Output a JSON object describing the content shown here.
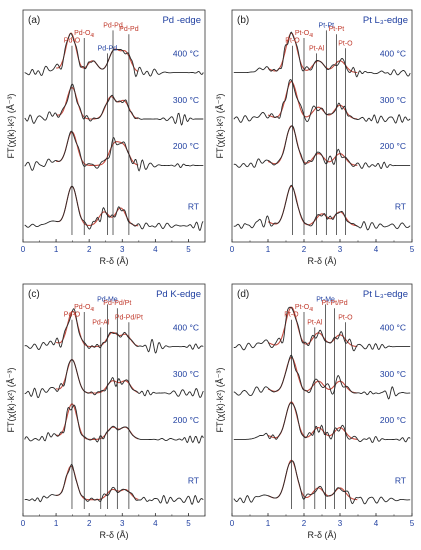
{
  "chart_data": [
    {
      "type": "line",
      "panel_label": "(a)",
      "title": "Pd -edge",
      "xlabel": "R-δ (Å)",
      "ylabel": "FT(χ(k)·k²) (Å⁻³)",
      "xlim": [
        0,
        5.5
      ],
      "x_ticks": [
        "0",
        "1",
        "2",
        "3",
        "4",
        "5"
      ],
      "grid": false,
      "series_colors": {
        "experimental": "#2a2a2a",
        "fit": "#c0392b"
      },
      "traces": [
        {
          "temperature": "RT",
          "peaks": [
            [
              1.48,
              1.0
            ],
            [
              2.45,
              0.35
            ],
            [
              2.95,
              0.45
            ]
          ]
        },
        {
          "temperature": "200 °C",
          "peaks": [
            [
              1.48,
              0.85
            ],
            [
              2.75,
              0.5
            ],
            [
              3.05,
              0.45
            ]
          ]
        },
        {
          "temperature": "300 °C",
          "peaks": [
            [
              1.48,
              0.8
            ],
            [
              2.65,
              0.55
            ],
            [
              3.05,
              0.45
            ]
          ]
        },
        {
          "temperature": "400 °C",
          "peaks": [
            [
              1.45,
              1.0
            ],
            [
              2.1,
              0.3
            ],
            [
              2.75,
              0.55
            ],
            [
              3.1,
              0.5
            ]
          ]
        }
      ],
      "markers": [
        {
          "label": "Pd-O",
          "x": 1.48,
          "color": "#c0392b"
        },
        {
          "label": "Pd-O",
          "sub": "4l",
          "x": 1.85,
          "color": "#c0392b"
        },
        {
          "label": "Pd-Pd",
          "x": 2.55,
          "color": "#1f3fa0"
        },
        {
          "label": "Pd-Pd",
          "x": 2.72,
          "color": "#c0392b"
        },
        {
          "label": "Pd-Pd",
          "x": 3.2,
          "color": "#c0392b"
        }
      ]
    },
    {
      "type": "line",
      "panel_label": "(b)",
      "title": "Pt L₃-edge",
      "xlabel": "R-δ (Å)",
      "ylabel": "FT(χ(k)·k²) (Å⁻³)",
      "xlim": [
        0,
        5
      ],
      "x_ticks": [
        "0",
        "1",
        "2",
        "3",
        "4",
        "5"
      ],
      "grid": false,
      "series_colors": {
        "experimental": "#2a2a2a",
        "fit": "#c0392b"
      },
      "traces": [
        {
          "temperature": "RT",
          "peaks": [
            [
              1.65,
              1.0
            ],
            [
              2.5,
              0.3
            ],
            [
              3.0,
              0.35
            ]
          ]
        },
        {
          "temperature": "200 °C",
          "peaks": [
            [
              1.65,
              1.0
            ],
            [
              2.4,
              0.3
            ],
            [
              3.0,
              0.3
            ]
          ]
        },
        {
          "temperature": "300 °C",
          "peaks": [
            [
              1.65,
              0.95
            ],
            [
              2.4,
              0.3
            ],
            [
              3.0,
              0.35
            ]
          ]
        },
        {
          "temperature": "400 °C",
          "peaks": [
            [
              1.65,
              1.0
            ],
            [
              2.4,
              0.3
            ],
            [
              3.0,
              0.3
            ]
          ]
        }
      ],
      "markers": [
        {
          "label": "Pt-O",
          "x": 1.68,
          "color": "#c0392b"
        },
        {
          "label": "Pt-O",
          "sub": "4l",
          "x": 2.0,
          "color": "#c0392b"
        },
        {
          "label": "Pt-Al",
          "x": 2.35,
          "color": "#c0392b"
        },
        {
          "label": "Pt-Pt",
          "x": 2.62,
          "color": "#1f3fa0"
        },
        {
          "label": "Pt-Pt",
          "x": 2.9,
          "color": "#c0392b"
        },
        {
          "label": "Pt-O",
          "x": 3.15,
          "color": "#c0392b"
        }
      ]
    },
    {
      "type": "line",
      "panel_label": "(c)",
      "title": "Pd K-edge",
      "xlabel": "R-δ (Å)",
      "ylabel": "FT(χ(k)·k²) (Å⁻³)",
      "xlim": [
        0,
        5.5
      ],
      "x_ticks": [
        "0",
        "1",
        "2",
        "3",
        "4",
        "5"
      ],
      "grid": false,
      "series_colors": {
        "experimental": "#2a2a2a",
        "fit": "#c0392b"
      },
      "traces": [
        {
          "temperature": "RT",
          "peaks": [
            [
              1.45,
              0.85
            ],
            [
              2.7,
              0.25
            ],
            [
              3.1,
              0.25
            ]
          ]
        },
        {
          "temperature": "200 °C",
          "peaks": [
            [
              1.48,
              0.9
            ],
            [
              2.7,
              0.3
            ],
            [
              3.1,
              0.3
            ]
          ]
        },
        {
          "temperature": "300 °C",
          "peaks": [
            [
              1.48,
              0.85
            ],
            [
              2.7,
              0.3
            ],
            [
              3.1,
              0.3
            ]
          ]
        },
        {
          "temperature": "400 °C",
          "peaks": [
            [
              1.5,
              0.9
            ],
            [
              2.7,
              0.35
            ],
            [
              3.1,
              0.3
            ]
          ]
        }
      ],
      "markers": [
        {
          "label": "Pd-O",
          "x": 1.48,
          "color": "#c0392b"
        },
        {
          "label": "Pd-O",
          "sub": "4l",
          "x": 1.85,
          "color": "#c0392b"
        },
        {
          "label": "Pd-Al",
          "x": 2.35,
          "color": "#c0392b"
        },
        {
          "label": "Pd-Me",
          "x": 2.55,
          "color": "#1f3fa0"
        },
        {
          "label": "Pd-Pd/Pt",
          "x": 2.85,
          "color": "#c0392b"
        },
        {
          "label": "Pd-Pd/Pt",
          "x": 3.2,
          "color": "#c0392b"
        }
      ]
    },
    {
      "type": "line",
      "panel_label": "(d)",
      "title": "Pt L₃-edge",
      "xlabel": "R-δ (Å)",
      "ylabel": "FT(χ(k)·k²) (Å⁻³)",
      "xlim": [
        0,
        5
      ],
      "x_ticks": [
        "0",
        "1",
        "2",
        "3",
        "4",
        "5"
      ],
      "grid": false,
      "series_colors": {
        "experimental": "#2a2a2a",
        "fit": "#c0392b"
      },
      "traces": [
        {
          "temperature": "RT",
          "peaks": [
            [
              1.65,
              1.0
            ],
            [
              2.4,
              0.3
            ],
            [
              3.0,
              0.3
            ]
          ]
        },
        {
          "temperature": "200 °C",
          "peaks": [
            [
              1.65,
              0.95
            ],
            [
              2.4,
              0.3
            ],
            [
              3.0,
              0.3
            ]
          ]
        },
        {
          "temperature": "300 °C",
          "peaks": [
            [
              1.65,
              0.9
            ],
            [
              2.4,
              0.3
            ],
            [
              3.0,
              0.3
            ]
          ]
        },
        {
          "temperature": "400 °C",
          "peaks": [
            [
              1.65,
              1.0
            ],
            [
              2.4,
              0.35
            ],
            [
              3.0,
              0.3
            ]
          ]
        }
      ],
      "markers": [
        {
          "label": "Pt-O",
          "x": 1.65,
          "color": "#c0392b"
        },
        {
          "label": "Pt-O",
          "sub": "4l",
          "x": 2.0,
          "color": "#c0392b"
        },
        {
          "label": "Pt-Al",
          "x": 2.3,
          "color": "#c0392b"
        },
        {
          "label": "Pt-Me",
          "x": 2.6,
          "color": "#1f3fa0"
        },
        {
          "label": "Pt-Pt/Pd",
          "x": 2.85,
          "color": "#c0392b"
        },
        {
          "label": "Pt-O",
          "x": 3.15,
          "color": "#c0392b"
        }
      ]
    }
  ]
}
